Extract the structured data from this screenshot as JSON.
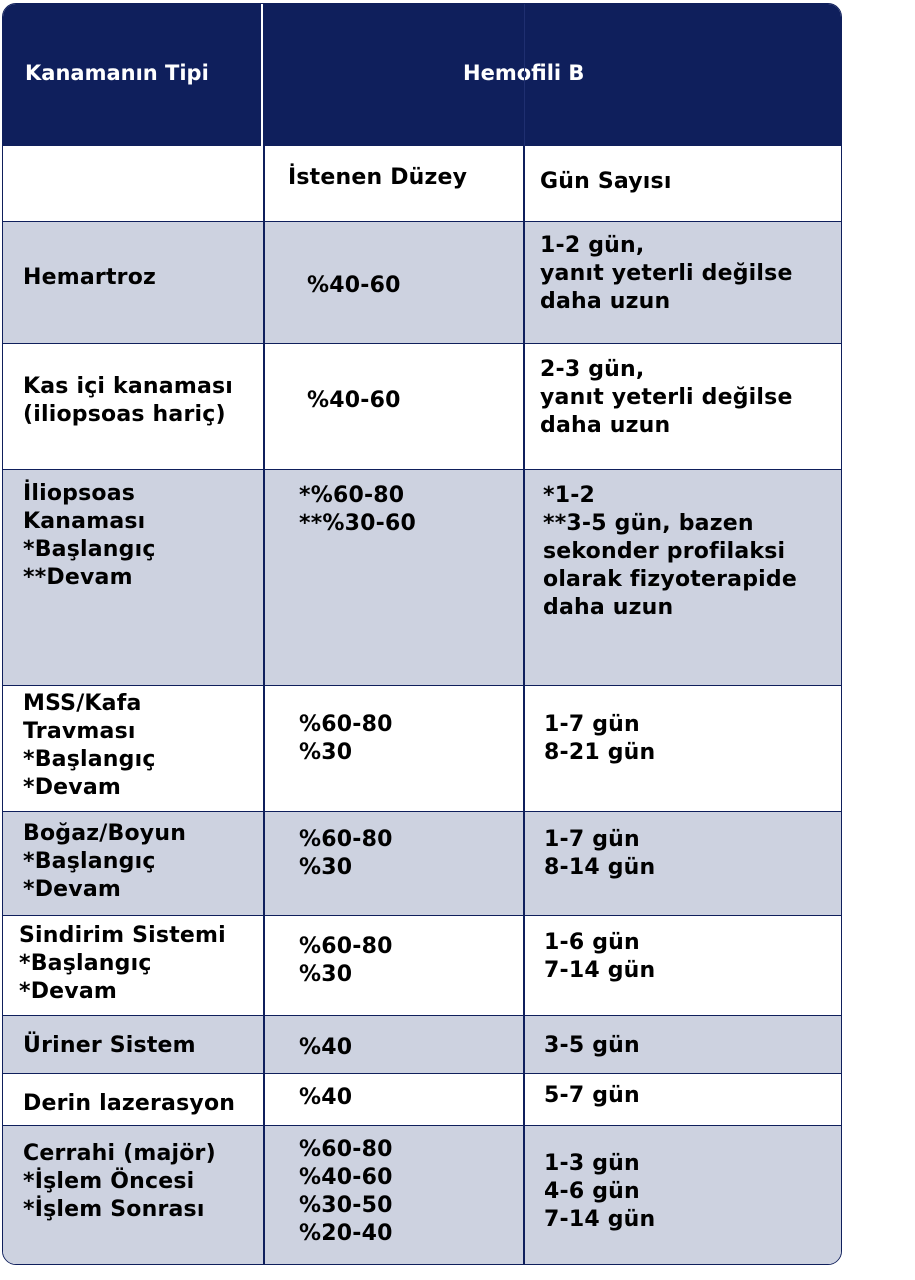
{
  "header": {
    "type_label": "Kanamanın Tipi",
    "group_label": "Hemofili B"
  },
  "subheader": {
    "level_label": "İstenen Düzey",
    "days_label": "Gün Sayısı"
  },
  "rows": [
    {
      "type": "Hemartroz",
      "level": "%40-60",
      "days": "1-2 gün,\nyanıt yeterli değilse\ndaha uzun"
    },
    {
      "type": "Kas içi kanaması\n(iliopsoas hariç)",
      "level": "%40-60",
      "days": "2-3 gün,\nyanıt yeterli değilse\ndaha uzun"
    },
    {
      "type": "İliopsoas\nKanaması\n*Başlangıç\n**Devam",
      "level": "*%60-80\n**%30-60",
      "days": "*1-2\n**3-5 gün, bazen\nsekonder profilaksi\nolarak fizyoterapide\ndaha uzun"
    },
    {
      "type": "MSS/Kafa\nTravması\n*Başlangıç\n*Devam",
      "level": "%60-80\n%30",
      "days": "1-7 gün\n8-21 gün"
    },
    {
      "type": "Boğaz/Boyun\n*Başlangıç\n*Devam",
      "level": "%60-80\n%30",
      "days": "1-7 gün\n8-14 gün"
    },
    {
      "type": "Sindirim Sistemi\n*Başlangıç\n*Devam",
      "level": "%60-80\n%30",
      "days": "1-6 gün\n7-14 gün"
    },
    {
      "type": "Üriner Sistem",
      "level": "%40",
      "days": "3-5 gün"
    },
    {
      "type": "Derin lazerasyon",
      "level": "%40",
      "days": "5-7 gün"
    },
    {
      "type": "Cerrahi (majör)\n*İşlem Öncesi\n*İşlem Sonrası",
      "level": "%60-80\n%40-60\n%30-50\n%20-40",
      "days": "1-3 gün\n4-6 gün\n7-14 gün"
    }
  ]
}
